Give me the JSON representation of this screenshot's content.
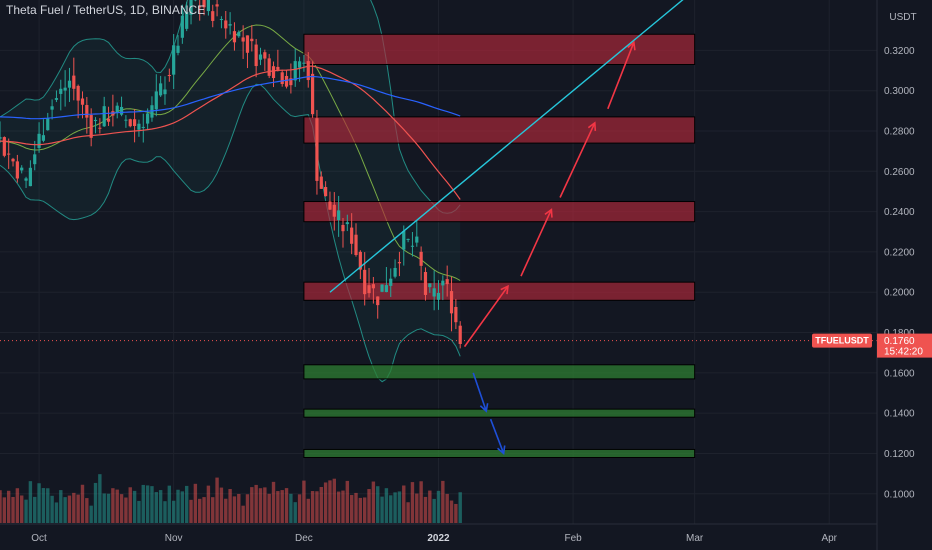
{
  "title": "Theta Fuel / TetherUS, 1D, BINANCE",
  "currency_label": "USDT",
  "symbol_tag": "TFUELUSDT",
  "last_price": "0.1760",
  "countdown": "15:42:20",
  "colors": {
    "background": "#131722",
    "up": "#26a69a",
    "down": "#ef5350",
    "resistance_zone": "#b2283b",
    "support_zone": "#2e7d32",
    "trendline": "#26c6da",
    "projection_up": "#f23645",
    "projection_down": "#1e4fd8",
    "ma_red": "#ef5350",
    "ma_green": "#8bc34a",
    "ma_blue": "#2962ff",
    "price_tag": "#ef5350"
  },
  "chart_data": {
    "type": "candlestick",
    "title": "Theta Fuel / TetherUS, 1D, BINANCE",
    "y_ticks": [
      "0.3200",
      "0.3000",
      "0.2800",
      "0.2600",
      "0.2400",
      "0.2200",
      "0.2000",
      "0.1800",
      "0.1600",
      "0.1400",
      "0.1200",
      "0.1000"
    ],
    "y_tick_values": [
      0.32,
      0.3,
      0.28,
      0.26,
      0.24,
      0.22,
      0.2,
      0.18,
      0.16,
      0.14,
      0.12,
      0.1
    ],
    "ylim": [
      0.085,
      0.345
    ],
    "x_ticks": [
      "Oct",
      "Nov",
      "Dec",
      "2022",
      "Feb",
      "Mar",
      "Apr"
    ],
    "x_tick_dates": [
      "2021-10-01",
      "2021-11-01",
      "2021-12-01",
      "2022-01-01",
      "2022-02-01",
      "2022-03-01",
      "2022-04-01"
    ],
    "xlim": [
      "2021-09-22",
      "2022-04-12"
    ],
    "close_path": [
      [
        "2021-09-22",
        0.275
      ],
      [
        "2021-09-28",
        0.255
      ],
      [
        "2021-10-03",
        0.29
      ],
      [
        "2021-10-08",
        0.305
      ],
      [
        "2021-10-13",
        0.282
      ],
      [
        "2021-10-18",
        0.29
      ],
      [
        "2021-10-23",
        0.283
      ],
      [
        "2021-10-27",
        0.29
      ],
      [
        "2021-10-31",
        0.31
      ],
      [
        "2021-11-02",
        0.325
      ],
      [
        "2021-11-05",
        0.345
      ],
      [
        "2021-11-10",
        0.34
      ],
      [
        "2021-11-15",
        0.33
      ],
      [
        "2021-11-20",
        0.318
      ],
      [
        "2021-11-25",
        0.31
      ],
      [
        "2021-11-28",
        0.305
      ],
      [
        "2021-11-30",
        0.315
      ],
      [
        "2021-12-02",
        0.31
      ],
      [
        "2021-12-04",
        0.26
      ],
      [
        "2021-12-06",
        0.245
      ],
      [
        "2021-12-09",
        0.235
      ],
      [
        "2021-12-12",
        0.228
      ],
      [
        "2021-12-15",
        0.205
      ],
      [
        "2021-12-18",
        0.198
      ],
      [
        "2021-12-21",
        0.21
      ],
      [
        "2021-12-24",
        0.225
      ],
      [
        "2021-12-27",
        0.222
      ],
      [
        "2021-12-29",
        0.2
      ],
      [
        "2021-12-31",
        0.198
      ],
      [
        "2022-01-02",
        0.205
      ],
      [
        "2022-01-04",
        0.195
      ],
      [
        "2022-01-06",
        0.176
      ]
    ],
    "volume_level": [
      0.45,
      0.3,
      0.55,
      0.4,
      0.5,
      0.35,
      0.4,
      0.5,
      0.3,
      0.6,
      0.55,
      0.4,
      0.3,
      0.35,
      0.45,
      0.4,
      0.3,
      0.5,
      0.35,
      0.55,
      0.4,
      0.3,
      0.45,
      0.6,
      0.5,
      0.4,
      0.35,
      0.55,
      0.4,
      0.3,
      0.45,
      0.5,
      0.35,
      0.4,
      0.55,
      0.6,
      0.4,
      0.5,
      0.35,
      0.45,
      0.3,
      0.5,
      0.55,
      0.4,
      0.35,
      0.45,
      0.3,
      0.4,
      0.5,
      0.35,
      0.6,
      0.45,
      0.4,
      0.55,
      0.35,
      0.5,
      0.3,
      0.4,
      0.45,
      0.5,
      0.35,
      0.55,
      0.4,
      0.6,
      0.45,
      0.35,
      0.5,
      0.4,
      0.3,
      0.45,
      0.55,
      0.4,
      0.5,
      0.35,
      0.4,
      0.45,
      0.5,
      0.55,
      0.35,
      0.4,
      0.6,
      0.5,
      0.45,
      0.35,
      0.4,
      0.5,
      0.55,
      0.45,
      0.4,
      0.35,
      0.5,
      0.45,
      0.4,
      0.55,
      0.35,
      0.45,
      0.4,
      0.5,
      0.3,
      0.45,
      0.4,
      0.35,
      0.5,
      0.45,
      0.4,
      0.3,
      0.35,
      0.4,
      0.45,
      0.3
    ],
    "resistance_zones": [
      [
        0.313,
        0.328
      ],
      [
        0.274,
        0.287
      ],
      [
        0.235,
        0.245
      ],
      [
        0.196,
        0.205
      ]
    ],
    "support_zones": [
      [
        0.157,
        0.164
      ],
      [
        0.138,
        0.142
      ],
      [
        0.118,
        0.122
      ]
    ],
    "zone_start": "2021-12-01",
    "zone_end": "2022-03-01",
    "trendline": [
      [
        "2021-12-07",
        0.2
      ],
      [
        "2022-03-01",
        0.35
      ]
    ],
    "projection_up": [
      [
        [
          "2022-01-07",
          0.173
        ],
        [
          "2022-01-17",
          0.203
        ]
      ],
      [
        [
          "2022-01-20",
          0.208
        ],
        [
          "2022-01-27",
          0.241
        ]
      ],
      [
        [
          "2022-01-29",
          0.247
        ],
        [
          "2022-02-06",
          0.284
        ]
      ],
      [
        [
          "2022-02-09",
          0.291
        ],
        [
          "2022-02-15",
          0.324
        ]
      ]
    ],
    "projection_down": [
      [
        [
          "2022-01-09",
          0.16
        ],
        [
          "2022-01-12",
          0.141
        ]
      ],
      [
        [
          "2022-01-13",
          0.137
        ],
        [
          "2022-01-16",
          0.12
        ]
      ]
    ],
    "last_price_value": 0.176
  }
}
